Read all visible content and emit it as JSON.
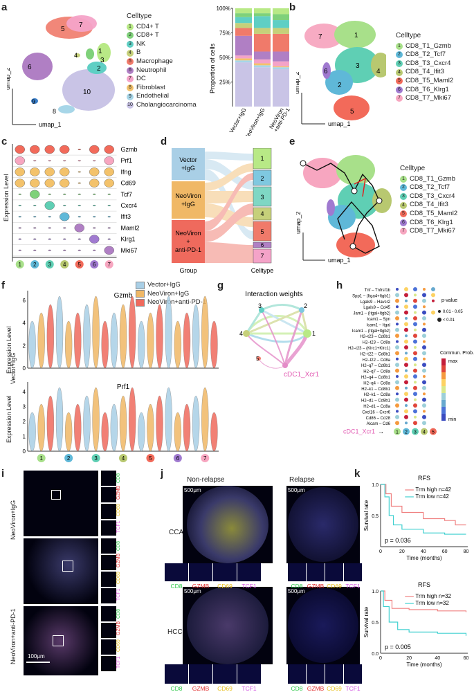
{
  "panels": {
    "a": "a",
    "b": "b",
    "c": "c",
    "d": "d",
    "e": "e",
    "f": "f",
    "g": "g",
    "h": "h",
    "i": "i",
    "j": "j",
    "k": "k"
  },
  "colors": [
    "#b8e986",
    "#7fd17a",
    "#5fcfc4",
    "#c6d07a",
    "#f07a6a",
    "#b07fc4",
    "#f4a3c8",
    "#f3c26b",
    "#a7d6e8",
    "#c9c4e6"
  ],
  "cd8colors": [
    "#a8e08a",
    "#5fb8d8",
    "#5fcfb4",
    "#b8c870",
    "#f26a5a",
    "#a07ad0",
    "#f7a6c0"
  ],
  "panel_a": {
    "legend_title": "Celltype",
    "celltypes": [
      {
        "n": "1",
        "label": "CD4+ T"
      },
      {
        "n": "2",
        "label": "CD8+ T"
      },
      {
        "n": "3",
        "label": "NK"
      },
      {
        "n": "4",
        "label": "B"
      },
      {
        "n": "5",
        "label": "Macrophage"
      },
      {
        "n": "6",
        "label": "Neutrophil"
      },
      {
        "n": "7",
        "label": "DC"
      },
      {
        "n": "8",
        "label": "Fibroblast"
      },
      {
        "n": "9",
        "label": "Endothelial"
      },
      {
        "n": "10",
        "label": "Cholangiocarcinoma"
      }
    ],
    "umap_x": "umap_1",
    "umap_y": "umap_2",
    "cluster_labels": [
      "5",
      "7",
      "4",
      "1",
      "3",
      "2",
      "6",
      "10",
      "9",
      "8"
    ]
  },
  "chart_data": {
    "type": "bar",
    "stacked": true,
    "categories": [
      "Vector+IgG",
      "NeoViron+IgG",
      "NeoViron\n+anti-PD-1"
    ],
    "ylabel": "Proportion of cells",
    "yticks": [
      "25%",
      "50%",
      "75%",
      "100%"
    ],
    "ylim": [
      0,
      100
    ],
    "series": [
      {
        "name": "Cholangiocarcinoma",
        "values": [
          45,
          40,
          38
        ]
      },
      {
        "name": "Endothelial",
        "values": [
          2,
          2,
          2
        ]
      },
      {
        "name": "Fibroblast",
        "values": [
          2,
          2,
          1
        ]
      },
      {
        "name": "DC",
        "values": [
          3,
          4,
          5
        ]
      },
      {
        "name": "Neutrophil",
        "values": [
          20,
          8,
          10
        ]
      },
      {
        "name": "Macrophage",
        "values": [
          8,
          18,
          18
        ]
      },
      {
        "name": "B",
        "values": [
          5,
          6,
          6
        ]
      },
      {
        "name": "NK",
        "values": [
          6,
          12,
          8
        ]
      },
      {
        "name": "CD8+ T",
        "values": [
          4,
          3,
          6
        ]
      },
      {
        "name": "CD4+ T",
        "values": [
          5,
          5,
          6
        ]
      }
    ]
  },
  "panel_b": {
    "legend_title": "Celltype",
    "celltypes": [
      {
        "n": "1",
        "label": "CD8_T1_Gzmb"
      },
      {
        "n": "2",
        "label": "CD8_T2_Tcf7"
      },
      {
        "n": "3",
        "label": "CD8_T3_Cxcr4"
      },
      {
        "n": "4",
        "label": "CD8_T4_Ifit3"
      },
      {
        "n": "5",
        "label": "CD8_T5_Maml2"
      },
      {
        "n": "6",
        "label": "CD8_T6_Klrg1"
      },
      {
        "n": "7",
        "label": "CD8_T7_Mki67"
      }
    ],
    "umap_x": "umap_1",
    "umap_y": "umap_2"
  },
  "panel_c": {
    "ylabel": "Expression Level",
    "genes": [
      "Gzmb",
      "Prf1",
      "Ifng",
      "Cd69",
      "Tcf7",
      "Cxcr4",
      "Ifit3",
      "Maml2",
      "Klrg1",
      "Mki67"
    ],
    "clusters": [
      "1",
      "2",
      "3",
      "4",
      "5",
      "6",
      "7"
    ]
  },
  "panel_d": {
    "groups": [
      "Vector\n+IgG",
      "NeoViron\n+IgG",
      "NeoViron\n+\nanti-PD-1"
    ],
    "group_axis": "Group",
    "celltype_axis": "Celltype",
    "celltypes": [
      "1",
      "2",
      "3",
      "4",
      "5",
      "6",
      "7"
    ]
  },
  "panel_e": {
    "legend_title": "Celltype",
    "umap_x": "umap_1",
    "umap_y": "umap_2"
  },
  "panel_f": {
    "legend": [
      {
        "label": "Vector+IgG",
        "color": "#a9cfe6"
      },
      {
        "label": "NeoViron+IgG",
        "color": "#f0b866"
      },
      {
        "label": "NeoViron+anti-PD-1",
        "color": "#ef6a5d"
      }
    ],
    "genes": [
      "Gzmb",
      "Prf1"
    ],
    "ylabel": "Expression Level",
    "gzmb_ticks": [
      "0",
      "2",
      "4",
      "6"
    ],
    "prf1_ticks": [
      "0",
      "1",
      "2",
      "3",
      "4"
    ],
    "clusters": [
      "1",
      "2",
      "3",
      "4",
      "5",
      "6",
      "7"
    ]
  },
  "panel_g": {
    "title": "Interaction weights",
    "nodes": [
      "1",
      "2",
      "3",
      "4",
      "5"
    ],
    "source": "cDC1_Xcr1"
  },
  "panel_h": {
    "pairs": [
      "Tnf – Tnfrsf1b",
      "Spp1 – (Itga4+Itgb1)",
      "Lgals9 – Havcr2",
      "Lgals9 – Cd45",
      "Jam1 – (Itgal+Itgb2)",
      "Icam1 – Spn",
      "Icam1 – Itgal",
      "Icam1 – (Itgal+Itgb2)",
      "H2–t23 – Cd8b1",
      "H2–t23 – Cd8a",
      "H2–t23 – (Klrc1+Klrc1)",
      "H2–t22 – Cd8b1",
      "H2–t22 – Cd8a",
      "H2–q7 – Cd8b1",
      "H2–q7 – Cd8a",
      "H2–q4 – Cd8b1",
      "H2–q4 – Cd8a",
      "H2–k1 – Cd8b1",
      "H2–k1 – Cd8a",
      "H2–d1 – Cd8b1",
      "H2–d1 – Cd8a",
      "Cxcl16 – Cxcr6",
      "Cd86 – Cd28",
      "Alcam – Cd6"
    ],
    "source": "cDC1_Xcr1",
    "targets": [
      "1",
      "2",
      "3",
      "4",
      "5"
    ],
    "pvalue_title": "p-value",
    "pvalue_levels": [
      "0.01 - 0.05",
      "< 0.01"
    ],
    "prob_title": "Commun. Prob.",
    "prob_max": "max",
    "prob_min": "min"
  },
  "panel_i": {
    "rows": [
      "Vector+IgG",
      "NeoViron+IgG",
      "NeoViron+anti-PD-1"
    ],
    "markers": [
      "CD8",
      "GZMB",
      "CD69",
      "TCF1"
    ],
    "scalebar": "100μm"
  },
  "panel_j": {
    "cols": [
      "Non-relapse",
      "Relapse"
    ],
    "rows": [
      "CCA",
      "HCC"
    ],
    "scalebar": "500μm",
    "markers": [
      "CD8",
      "GZMB",
      "CD69",
      "TCF1"
    ]
  },
  "panel_k": {
    "plots": [
      {
        "title": "RFS",
        "high": "Trm high n=42",
        "low": "Trm low n=42",
        "p": "p = 0.036",
        "xticks": [
          "0",
          "20",
          "40",
          "60",
          "80"
        ],
        "yticks": [
          "0.5",
          "1.0"
        ]
      },
      {
        "title": "RFS",
        "high": "Trm high n=32",
        "low": "Trm low n=32",
        "p": "p = 0.005",
        "xticks": [
          "0",
          "20",
          "40",
          "60"
        ],
        "yticks": [
          "0.0",
          "0.5",
          "1.0"
        ]
      }
    ],
    "ylabel": "Survival rate",
    "xlabel": "Time (months)"
  }
}
